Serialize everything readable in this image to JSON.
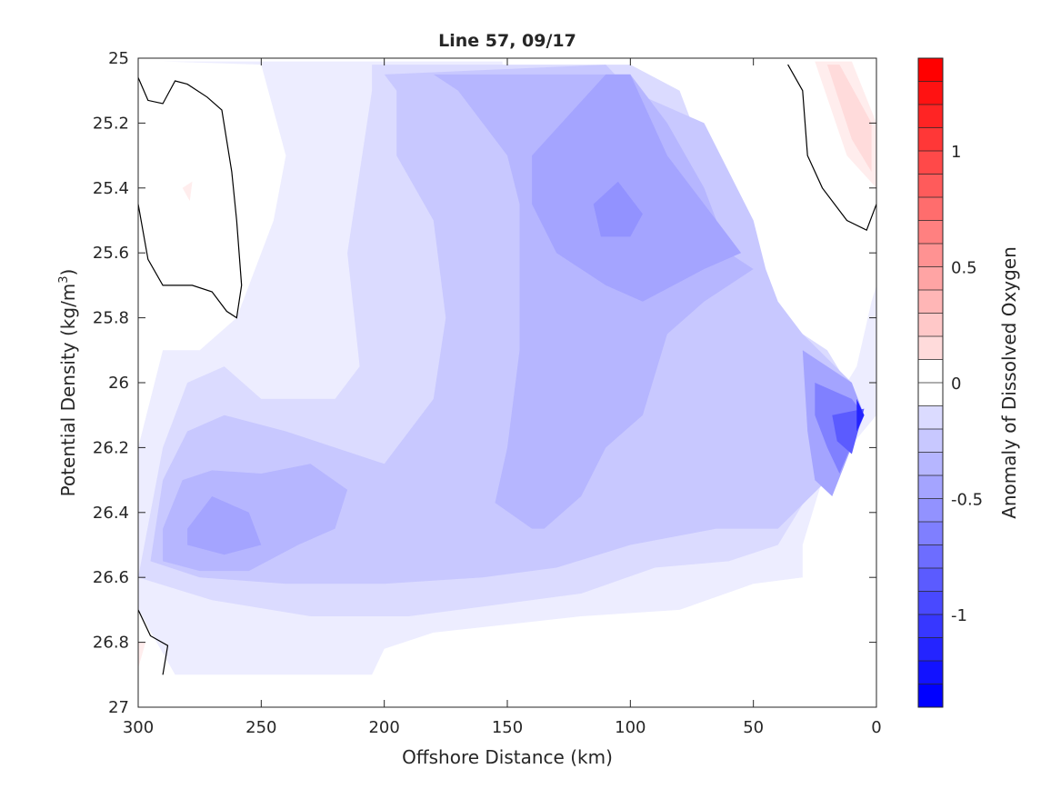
{
  "chart_data": {
    "type": "contour",
    "title": "Line 57, 09/17",
    "xlabel": "Offshore Distance (km)",
    "ylabel_main": "Potential Density (kg/m",
    "ylabel_sup": "3",
    "ylabel_close": ")",
    "x_range": [
      300,
      0
    ],
    "y_range": [
      25,
      27
    ],
    "x_ticks": [
      "300",
      "250",
      "200",
      "150",
      "100",
      "50",
      "0"
    ],
    "y_ticks": [
      "25",
      "25.2",
      "25.4",
      "25.6",
      "25.8",
      "26",
      "26.2",
      "26.4",
      "26.6",
      "26.8",
      "27"
    ],
    "x_tick_values": [
      300,
      250,
      200,
      150,
      100,
      50,
      0
    ],
    "y_tick_values": [
      25,
      25.2,
      25.4,
      25.6,
      25.8,
      26,
      26.2,
      26.4,
      26.6,
      26.8,
      27
    ],
    "colorbar": {
      "label": "Anomaly of Dissolved Oxygen",
      "range": [
        -1.4,
        1.4
      ],
      "level_step": 0.1,
      "tick_labels": [
        "1",
        "0.5",
        "0",
        "-0.5",
        "-1"
      ],
      "tick_values": [
        1,
        0.5,
        0,
        -0.5,
        -1
      ],
      "negative_color": "#0000ff",
      "positive_color": "#ff0000",
      "zero_color": "#ffffff"
    },
    "regions": [
      {
        "level": -0.1,
        "polygon": [
          [
            290,
            25.01
          ],
          [
            152,
            25.01
          ],
          [
            148,
            25.5
          ],
          [
            138,
            26.1
          ],
          [
            126,
            26.25
          ],
          [
            110,
            26.3
          ],
          [
            84,
            26.32
          ],
          [
            62,
            26.27
          ],
          [
            32,
            26.25
          ],
          [
            8,
            25.95
          ],
          [
            2,
            25.75
          ],
          [
            0,
            25.7
          ],
          [
            0,
            26.1
          ],
          [
            22,
            26.3
          ],
          [
            30,
            26.5
          ],
          [
            30,
            26.6
          ],
          [
            50,
            26.62
          ],
          [
            80,
            26.7
          ],
          [
            120,
            26.72
          ],
          [
            180,
            26.77
          ],
          [
            200,
            26.82
          ],
          [
            205,
            26.9
          ],
          [
            250,
            26.9
          ],
          [
            285,
            26.9
          ],
          [
            300,
            26.7
          ],
          [
            300,
            26.2
          ],
          [
            290,
            25.9
          ],
          [
            275,
            25.9
          ],
          [
            260,
            25.8
          ],
          [
            245,
            25.5
          ],
          [
            240,
            25.3
          ],
          [
            250,
            25.02
          ]
        ]
      },
      {
        "level": -0.2,
        "polygon": [
          [
            205,
            25.02
          ],
          [
            100,
            25.02
          ],
          [
            80,
            25.1
          ],
          [
            55,
            25.6
          ],
          [
            40,
            25.8
          ],
          [
            20,
            25.9
          ],
          [
            8,
            26.05
          ],
          [
            28,
            26.35
          ],
          [
            40,
            26.5
          ],
          [
            60,
            26.55
          ],
          [
            90,
            26.57
          ],
          [
            120,
            26.65
          ],
          [
            150,
            26.68
          ],
          [
            190,
            26.72
          ],
          [
            230,
            26.72
          ],
          [
            270,
            26.67
          ],
          [
            300,
            26.6
          ],
          [
            290,
            26.2
          ],
          [
            280,
            26.0
          ],
          [
            265,
            25.95
          ],
          [
            250,
            26.05
          ],
          [
            220,
            26.05
          ],
          [
            210,
            25.95
          ],
          [
            215,
            25.6
          ],
          [
            210,
            25.35
          ],
          [
            205,
            25.1
          ]
        ]
      },
      {
        "level": -0.3,
        "polygon": [
          [
            200,
            25.05
          ],
          [
            110,
            25.02
          ],
          [
            100,
            25.1
          ],
          [
            70,
            25.2
          ],
          [
            50,
            25.5
          ],
          [
            45,
            25.65
          ],
          [
            40,
            25.75
          ],
          [
            30,
            25.85
          ],
          [
            10,
            26.0
          ],
          [
            20,
            26.3
          ],
          [
            40,
            26.45
          ],
          [
            65,
            26.45
          ],
          [
            100,
            26.5
          ],
          [
            130,
            26.57
          ],
          [
            160,
            26.6
          ],
          [
            200,
            26.62
          ],
          [
            240,
            26.62
          ],
          [
            275,
            26.6
          ],
          [
            295,
            26.55
          ],
          [
            290,
            26.3
          ],
          [
            280,
            26.15
          ],
          [
            265,
            26.1
          ],
          [
            240,
            26.15
          ],
          [
            220,
            26.2
          ],
          [
            200,
            26.25
          ],
          [
            180,
            26.05
          ],
          [
            175,
            25.8
          ],
          [
            180,
            25.5
          ],
          [
            195,
            25.3
          ],
          [
            195,
            25.1
          ]
        ]
      },
      {
        "level": -0.4,
        "polygon": [
          [
            180,
            25.05
          ],
          [
            110,
            25.05
          ],
          [
            100,
            25.05
          ],
          [
            85,
            25.2
          ],
          [
            70,
            25.4
          ],
          [
            60,
            25.6
          ],
          [
            50,
            25.65
          ],
          [
            70,
            25.75
          ],
          [
            85,
            25.85
          ],
          [
            95,
            26.1
          ],
          [
            110,
            26.2
          ],
          [
            120,
            26.35
          ],
          [
            135,
            26.45
          ],
          [
            140,
            26.45
          ],
          [
            155,
            26.37
          ],
          [
            150,
            26.2
          ],
          [
            145,
            25.9
          ],
          [
            145,
            25.45
          ],
          [
            150,
            25.3
          ],
          [
            160,
            25.2
          ],
          [
            170,
            25.1
          ]
        ]
      },
      {
        "level": -0.4,
        "polygon": [
          [
            290,
            26.45
          ],
          [
            282,
            26.3
          ],
          [
            270,
            26.27
          ],
          [
            250,
            26.28
          ],
          [
            230,
            26.25
          ],
          [
            215,
            26.33
          ],
          [
            220,
            26.45
          ],
          [
            235,
            26.5
          ],
          [
            255,
            26.58
          ],
          [
            275,
            26.58
          ],
          [
            290,
            26.55
          ]
        ]
      },
      {
        "level": -0.5,
        "polygon": [
          [
            140,
            25.3
          ],
          [
            110,
            25.05
          ],
          [
            100,
            25.05
          ],
          [
            85,
            25.3
          ],
          [
            70,
            25.45
          ],
          [
            55,
            25.6
          ],
          [
            70,
            25.65
          ],
          [
            95,
            25.75
          ],
          [
            110,
            25.7
          ],
          [
            130,
            25.6
          ],
          [
            140,
            25.45
          ]
        ]
      },
      {
        "level": -0.5,
        "polygon": [
          [
            280,
            26.45
          ],
          [
            270,
            26.35
          ],
          [
            255,
            26.4
          ],
          [
            250,
            26.5
          ],
          [
            265,
            26.53
          ],
          [
            280,
            26.5
          ]
        ]
      },
      {
        "level": -0.6,
        "polygon": [
          [
            115,
            25.45
          ],
          [
            105,
            25.38
          ],
          [
            95,
            25.48
          ],
          [
            100,
            25.55
          ],
          [
            112,
            25.55
          ]
        ]
      },
      {
        "level": -0.5,
        "polygon": [
          [
            30,
            25.9
          ],
          [
            10,
            26.0
          ],
          [
            5,
            26.1
          ],
          [
            18,
            26.35
          ],
          [
            25,
            26.3
          ],
          [
            28,
            26.15
          ]
        ]
      },
      {
        "level": -0.7,
        "polygon": [
          [
            25,
            26.0
          ],
          [
            10,
            26.05
          ],
          [
            5,
            26.1
          ],
          [
            15,
            26.28
          ],
          [
            20,
            26.2
          ],
          [
            25,
            26.1
          ]
        ]
      },
      {
        "level": -0.9,
        "polygon": [
          [
            18,
            26.1
          ],
          [
            5,
            26.08
          ],
          [
            10,
            26.22
          ],
          [
            16,
            26.18
          ]
        ]
      },
      {
        "level": -1.2,
        "polygon": [
          [
            8,
            26.05
          ],
          [
            5,
            26.1
          ],
          [
            8,
            26.15
          ]
        ]
      },
      {
        "level": 0.1,
        "polygon": [
          [
            25,
            25.01
          ],
          [
            10,
            25.01
          ],
          [
            0,
            25.2
          ],
          [
            0,
            25.4
          ],
          [
            12,
            25.3
          ]
        ]
      },
      {
        "level": 0.2,
        "polygon": [
          [
            20,
            25.02
          ],
          [
            15,
            25.02
          ],
          [
            2,
            25.2
          ],
          [
            2,
            25.35
          ],
          [
            10,
            25.25
          ]
        ]
      },
      {
        "level": 0.1,
        "polygon": [
          [
            282,
            25.4
          ],
          [
            278,
            25.38
          ],
          [
            279,
            25.44
          ]
        ]
      },
      {
        "level": 0.1,
        "polygon": [
          [
            300,
            26.8
          ],
          [
            297,
            26.8
          ],
          [
            300,
            26.88
          ]
        ]
      }
    ],
    "zero_contours": [
      [
        [
          300,
          25.06
        ],
        [
          296,
          25.13
        ],
        [
          290,
          25.14
        ],
        [
          285,
          25.07
        ],
        [
          280,
          25.08
        ],
        [
          272,
          25.12
        ],
        [
          266,
          25.16
        ],
        [
          262,
          25.35
        ],
        [
          260,
          25.5
        ],
        [
          258,
          25.7
        ],
        [
          260,
          25.8
        ],
        [
          264,
          25.78
        ],
        [
          270,
          25.72
        ],
        [
          278,
          25.7
        ],
        [
          290,
          25.7
        ],
        [
          296,
          25.62
        ],
        [
          300,
          25.45
        ]
      ],
      [
        [
          36,
          25.02
        ],
        [
          30,
          25.1
        ],
        [
          28,
          25.3
        ],
        [
          22,
          25.4
        ],
        [
          12,
          25.5
        ],
        [
          4,
          25.53
        ],
        [
          0,
          25.45
        ]
      ],
      [
        [
          300,
          26.7
        ],
        [
          295,
          26.78
        ],
        [
          288,
          26.81
        ],
        [
          290,
          26.9
        ]
      ]
    ]
  }
}
